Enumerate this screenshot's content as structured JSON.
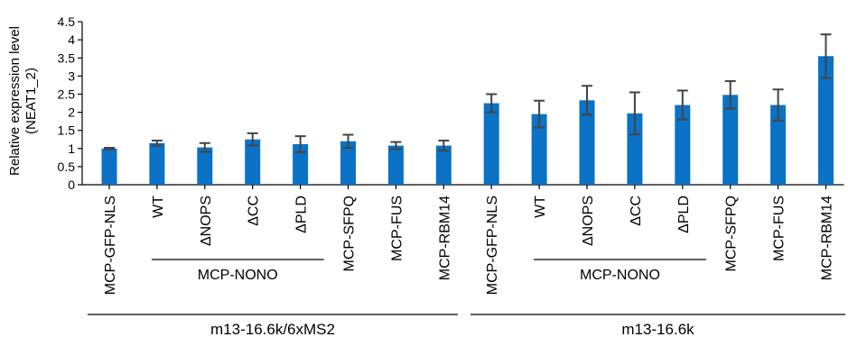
{
  "chart_data": {
    "type": "bar",
    "ylabel": "Relative expression level",
    "ylabel2": "(NEAT1_2)",
    "ylim": [
      0,
      4.5
    ],
    "yticks": [
      "0",
      "0.5",
      "1",
      "1.5",
      "2",
      "2.5",
      "3",
      "3.5",
      "4",
      "4.5"
    ],
    "grid": false,
    "bar_color": "#0b72c5",
    "error_color": "#444444",
    "categories": [
      "MCP-GFP-NLS",
      "WT",
      "ΔNOPS",
      "ΔCC",
      "ΔPLD",
      "MCP-SFPQ",
      "MCP-FUS",
      "MCP-RBM14",
      "MCP-GFP-NLS",
      "WT",
      "ΔNOPS",
      "ΔCC",
      "ΔPLD",
      "MCP-SFPQ",
      "MCP-FUS",
      "MCP-RBM14"
    ],
    "values": [
      1.0,
      1.15,
      1.03,
      1.25,
      1.12,
      1.2,
      1.08,
      1.08,
      2.25,
      1.95,
      2.33,
      1.97,
      2.2,
      2.48,
      2.2,
      3.55
    ],
    "errors": [
      0.02,
      0.07,
      0.12,
      0.17,
      0.22,
      0.18,
      0.1,
      0.14,
      0.25,
      0.37,
      0.4,
      0.58,
      0.4,
      0.38,
      0.43,
      0.6
    ],
    "subgroups": [
      {
        "label": "MCP-NONO",
        "first": 1,
        "last": 4
      },
      {
        "label": "MCP-NONO",
        "first": 9,
        "last": 12
      }
    ],
    "groups": [
      {
        "label": "m13-16.6k/6xMS2",
        "first": 0,
        "last": 7
      },
      {
        "label": "m13-16.6k",
        "first": 8,
        "last": 15
      }
    ]
  }
}
